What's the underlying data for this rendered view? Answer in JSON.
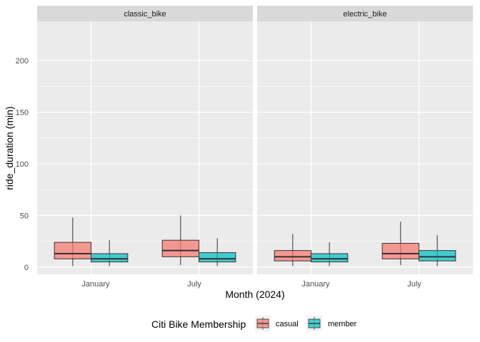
{
  "chart_data": {
    "type": "boxplot",
    "xlabel": "Month (2024)",
    "ylabel": "ride_duration (min)",
    "ylim": [
      -7,
      238
    ],
    "yticks": [
      0,
      50,
      100,
      150,
      200
    ],
    "categories": [
      "January",
      "July"
    ],
    "facets": [
      {
        "name": "classic_bike",
        "groups": [
          {
            "month": "January",
            "series": "casual",
            "min": 1,
            "q1": 8,
            "median": 13,
            "q3": 24,
            "max": 48
          },
          {
            "month": "January",
            "series": "member",
            "min": 1,
            "q1": 5,
            "median": 8,
            "q3": 13,
            "max": 26
          },
          {
            "month": "July",
            "series": "casual",
            "min": 2,
            "q1": 10,
            "median": 16,
            "q3": 26,
            "max": 50
          },
          {
            "month": "July",
            "series": "member",
            "min": 1,
            "q1": 5,
            "median": 8,
            "q3": 14,
            "max": 28
          }
        ]
      },
      {
        "name": "electric_bike",
        "groups": [
          {
            "month": "January",
            "series": "casual",
            "min": 1,
            "q1": 6,
            "median": 10,
            "q3": 16,
            "max": 32
          },
          {
            "month": "January",
            "series": "member",
            "min": 1,
            "q1": 5,
            "median": 8,
            "q3": 13,
            "max": 24
          },
          {
            "month": "July",
            "series": "casual",
            "min": 2,
            "q1": 8,
            "median": 13,
            "q3": 23,
            "max": 44
          },
          {
            "month": "July",
            "series": "member",
            "min": 1,
            "q1": 6,
            "median": 10,
            "q3": 16,
            "max": 31
          }
        ]
      }
    ],
    "legend": {
      "title": "Citi Bike Membership",
      "position": "bottom",
      "entries": [
        {
          "name": "casual",
          "color": "#F8766D"
        },
        {
          "name": "member",
          "color": "#00BFC4"
        }
      ]
    }
  }
}
